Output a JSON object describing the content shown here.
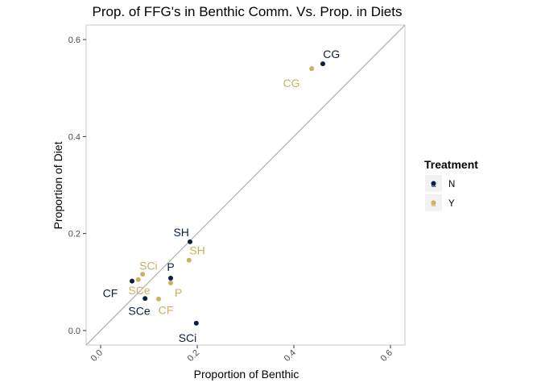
{
  "chart_data": {
    "type": "scatter",
    "title": "Prop. of FFG's in Benthic Comm. Vs. Prop. in Diets",
    "xlabel": "Proportion of Benthic",
    "ylabel": "Proportion of Diet",
    "xlim": [
      -0.03,
      0.63
    ],
    "ylim": [
      -0.03,
      0.63
    ],
    "x_ticks": [
      0.0,
      0.2,
      0.4,
      0.6
    ],
    "x_tick_labels": [
      "0.0",
      "0.2",
      "0.4",
      "0.6"
    ],
    "y_ticks": [
      0.0,
      0.2,
      0.4,
      0.6
    ],
    "y_tick_labels": [
      "0.0",
      "0.2",
      "0.4",
      "0.6"
    ],
    "grid": false,
    "reference_line": "y = x",
    "legend": {
      "title": "Treatment",
      "placement": "right",
      "entries": [
        {
          "label": "N",
          "key_glyph": "a",
          "color": "#0b1f3f"
        },
        {
          "label": "Y",
          "key_glyph": "a",
          "color": "#c9b260"
        }
      ]
    },
    "series": [
      {
        "name": "N",
        "color": "#0b1f3f",
        "points": [
          {
            "label": "CG",
            "x": 0.46,
            "y": 0.55,
            "label_dx": 0.018,
            "label_dy": 0.02
          },
          {
            "label": "SH",
            "x": 0.185,
            "y": 0.183,
            "label_dx": -0.018,
            "label_dy": 0.02
          },
          {
            "label": "P",
            "x": 0.145,
            "y": 0.108,
            "label_dx": 0.0,
            "label_dy": 0.023
          },
          {
            "label": "CF",
            "x": 0.065,
            "y": 0.102,
            "label_dx": -0.045,
            "label_dy": -0.025
          },
          {
            "label": "SCe",
            "x": 0.092,
            "y": 0.066,
            "label_dx": -0.012,
            "label_dy": -0.025
          },
          {
            "label": "SCi",
            "x": 0.198,
            "y": 0.015,
            "label_dx": -0.018,
            "label_dy": -0.03
          }
        ]
      },
      {
        "name": "Y",
        "color": "#c9b260",
        "points": [
          {
            "label": "CG",
            "x": 0.437,
            "y": 0.54,
            "label_dx": -0.042,
            "label_dy": -0.03
          },
          {
            "label": "SH",
            "x": 0.183,
            "y": 0.145,
            "label_dx": 0.017,
            "label_dy": 0.02
          },
          {
            "label": "P",
            "x": 0.145,
            "y": 0.098,
            "label_dx": 0.016,
            "label_dy": -0.02
          },
          {
            "label": "SCi",
            "x": 0.087,
            "y": 0.116,
            "label_dx": 0.012,
            "label_dy": 0.018
          },
          {
            "label": "SCe",
            "x": 0.078,
            "y": 0.105,
            "label_dx": 0.002,
            "label_dy": -0.022
          },
          {
            "label": "CF",
            "x": 0.12,
            "y": 0.065,
            "label_dx": 0.015,
            "label_dy": -0.023
          }
        ]
      }
    ]
  }
}
